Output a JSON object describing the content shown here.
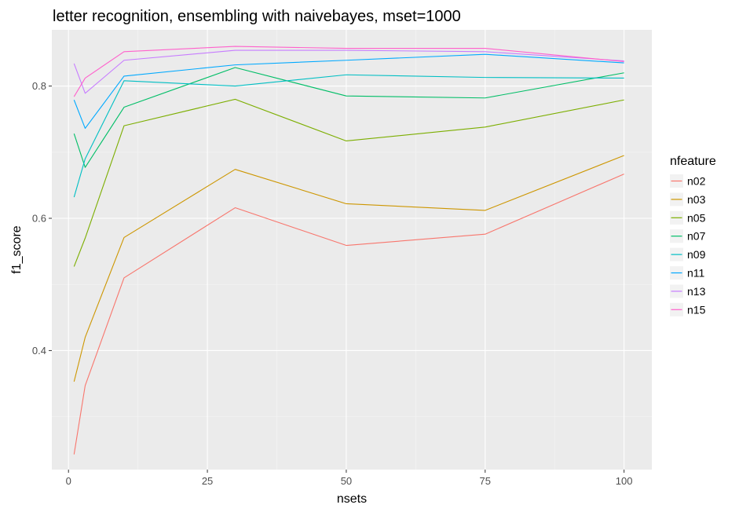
{
  "chart_data": {
    "type": "line",
    "title": "letter recognition, ensembling with naivebayes, mset=1000",
    "xlabel": "nsets",
    "ylabel": "f1_score",
    "xlim": [
      -3,
      105
    ],
    "ylim": [
      0.22,
      0.885
    ],
    "x_ticks": [
      0,
      25,
      50,
      75,
      100
    ],
    "y_ticks": [
      0.4,
      0.6,
      0.8
    ],
    "x_tick_labels": [
      "0",
      "25",
      "50",
      "75",
      "100"
    ],
    "y_tick_labels": [
      "0.4",
      "0.6",
      "0.8"
    ],
    "grid": true,
    "legend_title": "nfeature",
    "legend_position": "right",
    "x": [
      1,
      3,
      10,
      30,
      50,
      75,
      100
    ],
    "series": [
      {
        "name": "n02",
        "color": "#F8766D",
        "values": [
          0.243,
          0.347,
          0.51,
          0.616,
          0.559,
          0.576,
          0.667
        ]
      },
      {
        "name": "n03",
        "color": "#CD9600",
        "values": [
          0.353,
          0.42,
          0.571,
          0.674,
          0.622,
          0.612,
          0.695
        ]
      },
      {
        "name": "n05",
        "color": "#7CAE00",
        "values": [
          0.527,
          0.57,
          0.74,
          0.78,
          0.717,
          0.738,
          0.779
        ]
      },
      {
        "name": "n07",
        "color": "#00BE67",
        "values": [
          0.728,
          0.677,
          0.768,
          0.828,
          0.785,
          0.782,
          0.82
        ]
      },
      {
        "name": "n09",
        "color": "#00BFC4",
        "values": [
          0.632,
          0.69,
          0.808,
          0.8,
          0.817,
          0.813,
          0.812
        ]
      },
      {
        "name": "n11",
        "color": "#00A9FF",
        "values": [
          0.779,
          0.736,
          0.815,
          0.832,
          0.839,
          0.848,
          0.835
        ]
      },
      {
        "name": "n13",
        "color": "#C77CFF",
        "values": [
          0.834,
          0.789,
          0.839,
          0.854,
          0.854,
          0.852,
          0.838
        ]
      },
      {
        "name": "n15",
        "color": "#FF61CC",
        "values": [
          0.784,
          0.812,
          0.852,
          0.86,
          0.857,
          0.857,
          0.837
        ]
      }
    ]
  }
}
